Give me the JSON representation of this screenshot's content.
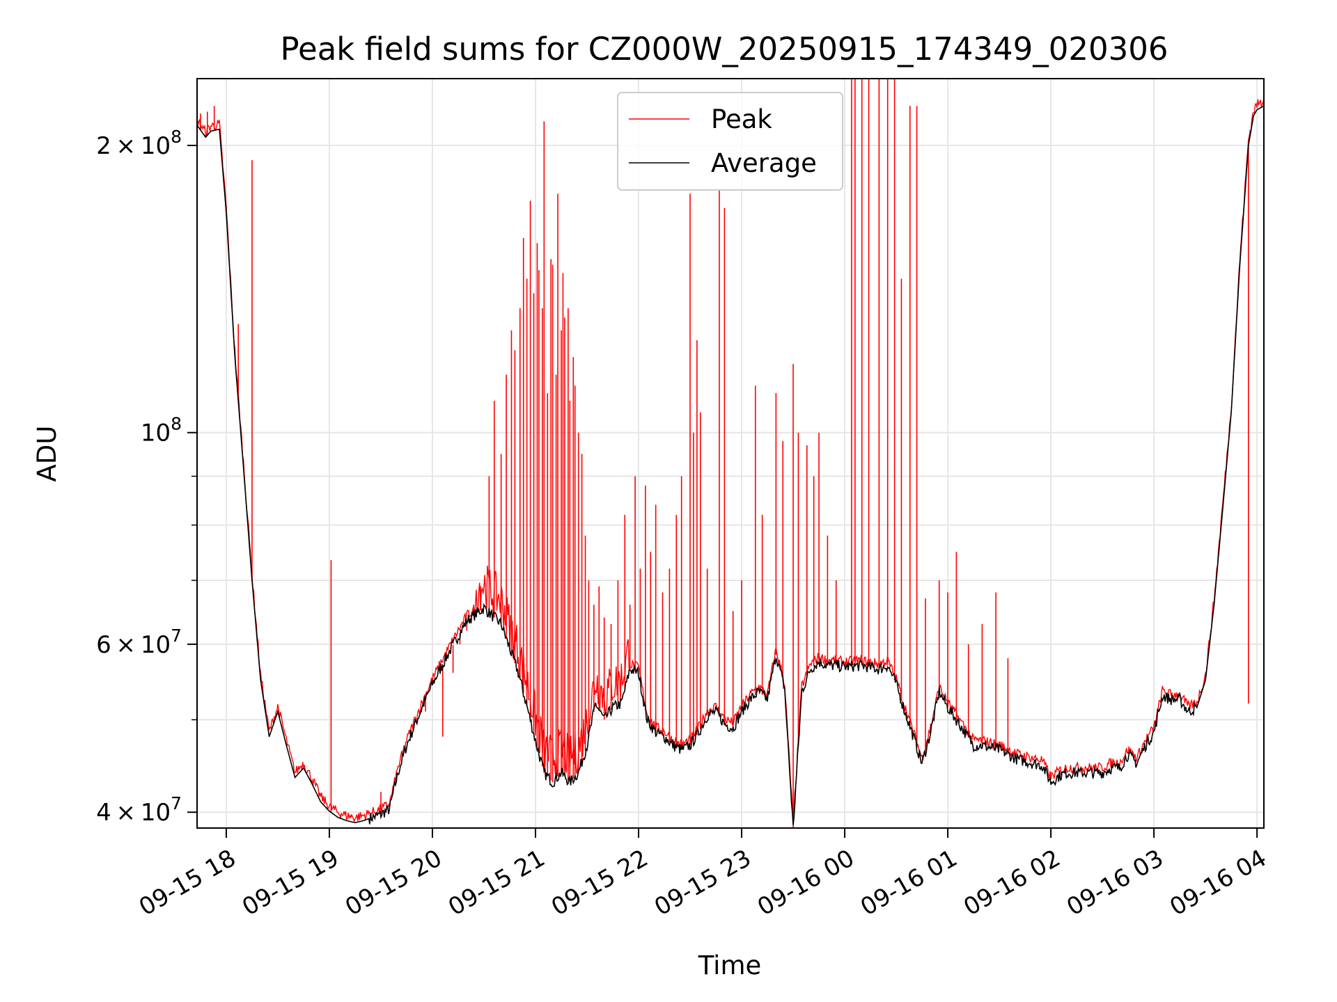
{
  "chart_data": {
    "type": "line",
    "title": "Peak field sums for CZ000W_20250915_174349_020306",
    "xlabel": "Time",
    "ylabel": "ADU",
    "yscale": "log",
    "ylim": [
      38500000,
      235000000
    ],
    "x_range": [
      "09-15 17:43",
      "09-16 04:04"
    ],
    "grid": true,
    "legend_position": "upper center",
    "colors": {
      "peak": "#ff0000",
      "average": "#000000"
    },
    "x_ticks": [
      "09-15 18",
      "09-15 19",
      "09-15 20",
      "09-15 21",
      "09-15 22",
      "09-15 23",
      "09-16 00",
      "09-16 01",
      "09-16 02",
      "09-16 03",
      "09-16 04"
    ],
    "y_ticks": [
      {
        "value": 40000000,
        "mantissa": "4",
        "exponent": "7"
      },
      {
        "value": 60000000,
        "mantissa": "6",
        "exponent": "7"
      },
      {
        "value": 100000000,
        "mantissa": "",
        "exponent": "8"
      },
      {
        "value": 200000000,
        "mantissa": "2",
        "exponent": "8"
      }
    ],
    "y_minor_ticks": [
      50000000,
      70000000,
      80000000,
      90000000
    ],
    "series": [
      {
        "name": "Average",
        "x": [
          "09-15 17:43",
          "09-15 17:48",
          "09-15 17:51",
          "09-15 17:56",
          "09-15 18:00",
          "09-15 18:05",
          "09-15 18:10",
          "09-15 18:15",
          "09-15 18:20",
          "09-15 18:25",
          "09-15 18:30",
          "09-15 18:35",
          "09-15 18:40",
          "09-15 18:45",
          "09-15 18:50",
          "09-15 18:55",
          "09-15 19:00",
          "09-15 19:05",
          "09-15 19:10",
          "09-15 19:15",
          "09-15 19:20",
          "09-15 19:25",
          "09-15 19:30",
          "09-15 19:35",
          "09-15 19:40",
          "09-15 19:45",
          "09-15 19:50",
          "09-15 19:55",
          "09-15 20:00",
          "09-15 20:10",
          "09-15 20:20",
          "09-15 20:30",
          "09-15 20:40",
          "09-15 20:50",
          "09-15 20:57",
          "09-15 21:00",
          "09-15 21:05",
          "09-15 21:10",
          "09-15 21:15",
          "09-15 21:20",
          "09-15 21:25",
          "09-15 21:30",
          "09-15 21:35",
          "09-15 21:40",
          "09-15 21:45",
          "09-15 21:50",
          "09-15 21:55",
          "09-15 22:00",
          "09-15 22:05",
          "09-15 22:10",
          "09-15 22:15",
          "09-15 22:20",
          "09-15 22:25",
          "09-15 22:30",
          "09-15 22:35",
          "09-15 22:40",
          "09-15 22:45",
          "09-15 22:50",
          "09-15 22:55",
          "09-15 23:00",
          "09-15 23:05",
          "09-15 23:10",
          "09-15 23:15",
          "09-15 23:20",
          "09-15 23:25",
          "09-15 23:30",
          "09-15 23:35",
          "09-15 23:40",
          "09-15 23:45",
          "09-15 23:50",
          "09-15 23:55",
          "09-16 00:00",
          "09-16 00:10",
          "09-16 00:20",
          "09-16 00:25",
          "09-16 00:30",
          "09-16 00:35",
          "09-16 00:40",
          "09-16 00:45",
          "09-16 00:50",
          "09-16 00:55",
          "09-16 01:00",
          "09-16 01:05",
          "09-16 01:10",
          "09-16 01:15",
          "09-16 01:20",
          "09-16 01:30",
          "09-16 01:40",
          "09-16 01:50",
          "09-16 01:55",
          "09-16 02:00",
          "09-16 02:05",
          "09-16 02:10",
          "09-16 02:20",
          "09-16 02:30",
          "09-16 02:35",
          "09-16 02:40",
          "09-16 02:45",
          "09-16 02:50",
          "09-16 02:55",
          "09-16 03:00",
          "09-16 03:05",
          "09-16 03:10",
          "09-16 03:15",
          "09-16 03:20",
          "09-16 03:25",
          "09-16 03:30",
          "09-16 03:35",
          "09-16 03:40",
          "09-16 03:45",
          "09-16 03:50",
          "09-16 03:55",
          "09-16 03:58",
          "09-16 04:00",
          "09-16 04:04"
        ],
        "values": [
          210000000,
          204000000,
          207000000,
          208000000,
          170000000,
          120000000,
          92000000,
          70000000,
          55000000,
          48000000,
          51000000,
          47000000,
          43500000,
          44500000,
          42800000,
          41000000,
          40100000,
          39500000,
          39200000,
          39000000,
          39200000,
          39500000,
          39800000,
          40300000,
          44000000,
          47000000,
          49500000,
          52000000,
          54500000,
          59000000,
          63500000,
          65500000,
          63000000,
          56000000,
          50000000,
          47500000,
          44000000,
          43000000,
          44000000,
          43000000,
          44000000,
          47000000,
          52000000,
          50000000,
          51500000,
          52000000,
          56500000,
          56000000,
          50000000,
          48500000,
          48000000,
          47000000,
          46500000,
          47000000,
          48500000,
          50500000,
          51000000,
          49500000,
          49000000,
          51000000,
          52500000,
          53500000,
          52500000,
          58500000,
          54000000,
          38500000,
          53500000,
          56500000,
          57500000,
          57000000,
          57000000,
          56800000,
          57000000,
          56500000,
          57000000,
          54500000,
          51000000,
          48000000,
          45000000,
          48500000,
          53500000,
          51500000,
          50000000,
          48500000,
          47000000,
          47000000,
          46500000,
          45500000,
          45000000,
          44800000,
          43000000,
          43700000,
          44000000,
          44000000,
          44000000,
          44500000,
          44500000,
          46000000,
          45000000,
          47000000,
          48500000,
          53000000,
          52500000,
          52500000,
          51000000,
          51500000,
          55000000,
          66000000,
          83000000,
          105000000,
          150000000,
          200000000,
          215000000,
          218000000,
          220000000
        ]
      },
      {
        "name": "Peak",
        "baseline": "Average",
        "spikes": [
          {
            "x": "09-15 17:45",
            "y": 216000000
          },
          {
            "x": "09-15 17:49",
            "y": 217000000
          },
          {
            "x": "09-15 17:53",
            "y": 220000000
          },
          {
            "x": "09-15 18:00",
            "y": 173000000
          },
          {
            "x": "09-15 18:07",
            "y": 130000000
          },
          {
            "x": "09-15 18:15",
            "y": 193000000
          },
          {
            "x": "09-15 19:01",
            "y": 73500000
          },
          {
            "x": "09-15 19:30",
            "y": 42000000
          },
          {
            "x": "09-15 19:56",
            "y": 51000000
          },
          {
            "x": "09-15 20:06",
            "y": 48000000
          },
          {
            "x": "09-15 20:12",
            "y": 56000000
          },
          {
            "x": "09-15 20:16",
            "y": 60000000
          },
          {
            "x": "09-15 20:20",
            "y": 62000000
          },
          {
            "x": "09-15 20:24",
            "y": 66000000
          },
          {
            "x": "09-15 20:28",
            "y": 69000000
          },
          {
            "x": "09-15 20:33",
            "y": 90000000
          },
          {
            "x": "09-15 20:36",
            "y": 108000000
          },
          {
            "x": "09-15 20:40",
            "y": 95000000
          },
          {
            "x": "09-15 20:43",
            "y": 115000000
          },
          {
            "x": "09-15 20:46",
            "y": 128000000
          },
          {
            "x": "09-15 20:48",
            "y": 122000000
          },
          {
            "x": "09-15 20:51",
            "y": 135000000
          },
          {
            "x": "09-15 20:53",
            "y": 160000000
          },
          {
            "x": "09-15 20:55",
            "y": 145000000
          },
          {
            "x": "09-15 20:57",
            "y": 175000000
          },
          {
            "x": "09-15 20:59",
            "y": 140000000
          },
          {
            "x": "09-15 21:01",
            "y": 158000000
          },
          {
            "x": "09-15 21:02",
            "y": 148000000
          },
          {
            "x": "09-15 21:04",
            "y": 135000000
          },
          {
            "x": "09-15 21:05",
            "y": 212000000
          },
          {
            "x": "09-15 21:07",
            "y": 110000000
          },
          {
            "x": "09-15 21:09",
            "y": 152000000
          },
          {
            "x": "09-15 21:10",
            "y": 150000000
          },
          {
            "x": "09-15 21:12",
            "y": 115000000
          },
          {
            "x": "09-15 21:13",
            "y": 178000000
          },
          {
            "x": "09-15 21:15",
            "y": 128000000
          },
          {
            "x": "09-15 21:16",
            "y": 147000000
          },
          {
            "x": "09-15 21:17",
            "y": 132000000
          },
          {
            "x": "09-15 21:19",
            "y": 135000000
          },
          {
            "x": "09-15 21:20",
            "y": 108000000
          },
          {
            "x": "09-15 21:22",
            "y": 120000000
          },
          {
            "x": "09-15 21:23",
            "y": 112000000
          },
          {
            "x": "09-15 21:25",
            "y": 100000000
          },
          {
            "x": "09-15 21:27",
            "y": 95000000
          },
          {
            "x": "09-15 21:29",
            "y": 78000000
          },
          {
            "x": "09-15 21:31",
            "y": 70000000
          },
          {
            "x": "09-15 21:34",
            "y": 66000000
          },
          {
            "x": "09-15 21:37",
            "y": 69000000
          },
          {
            "x": "09-15 21:40",
            "y": 64000000
          },
          {
            "x": "09-15 21:44",
            "y": 63000000
          },
          {
            "x": "09-15 21:48",
            "y": 70000000
          },
          {
            "x": "09-15 21:52",
            "y": 82000000
          },
          {
            "x": "09-15 21:55",
            "y": 66000000
          },
          {
            "x": "09-15 21:58",
            "y": 90000000
          },
          {
            "x": "09-15 22:01",
            "y": 72000000
          },
          {
            "x": "09-15 22:04",
            "y": 88000000
          },
          {
            "x": "09-15 22:07",
            "y": 75000000
          },
          {
            "x": "09-15 22:10",
            "y": 84000000
          },
          {
            "x": "09-15 22:14",
            "y": 68000000
          },
          {
            "x": "09-15 22:18",
            "y": 72000000
          },
          {
            "x": "09-15 22:22",
            "y": 82000000
          },
          {
            "x": "09-15 22:25",
            "y": 90000000
          },
          {
            "x": "09-15 22:30",
            "y": 178000000
          },
          {
            "x": "09-15 22:32",
            "y": 100000000
          },
          {
            "x": "09-15 22:34",
            "y": 125000000
          },
          {
            "x": "09-15 22:36",
            "y": 105000000
          },
          {
            "x": "09-15 22:40",
            "y": 72000000
          },
          {
            "x": "09-15 22:47",
            "y": 180000000
          },
          {
            "x": "09-15 22:50",
            "y": 172000000
          },
          {
            "x": "09-15 22:55",
            "y": 65000000
          },
          {
            "x": "09-15 23:00",
            "y": 70000000
          },
          {
            "x": "09-15 23:08",
            "y": 112000000
          },
          {
            "x": "09-15 23:12",
            "y": 82000000
          },
          {
            "x": "09-15 23:20",
            "y": 110000000
          },
          {
            "x": "09-15 23:24",
            "y": 98000000
          },
          {
            "x": "09-15 23:30",
            "y": 118000000
          },
          {
            "x": "09-15 23:33",
            "y": 100000000
          },
          {
            "x": "09-15 23:38",
            "y": 97000000
          },
          {
            "x": "09-15 23:42",
            "y": 90000000
          },
          {
            "x": "09-15 23:45",
            "y": 100000000
          },
          {
            "x": "09-15 23:50",
            "y": 78000000
          },
          {
            "x": "09-15 23:55",
            "y": 70000000
          },
          {
            "x": "09-16 00:04",
            "y": 235000000
          },
          {
            "x": "09-16 00:06",
            "y": 235000000
          },
          {
            "x": "09-16 00:10",
            "y": 235000000
          },
          {
            "x": "09-16 00:14",
            "y": 235000000
          },
          {
            "x": "09-16 00:20",
            "y": 235000000
          },
          {
            "x": "09-16 00:25",
            "y": 235000000
          },
          {
            "x": "09-16 00:29",
            "y": 235000000
          },
          {
            "x": "09-16 00:33",
            "y": 145000000
          },
          {
            "x": "09-16 00:38",
            "y": 220000000
          },
          {
            "x": "09-16 00:42",
            "y": 220000000
          },
          {
            "x": "09-16 00:47",
            "y": 67000000
          },
          {
            "x": "09-16 00:55",
            "y": 70000000
          },
          {
            "x": "09-16 01:00",
            "y": 68000000
          },
          {
            "x": "09-16 01:05",
            "y": 75000000
          },
          {
            "x": "09-16 01:12",
            "y": 60000000
          },
          {
            "x": "09-16 01:20",
            "y": 63000000
          },
          {
            "x": "09-16 01:28",
            "y": 68000000
          },
          {
            "x": "09-16 01:35",
            "y": 58000000
          },
          {
            "x": "09-16 03:55",
            "y": 52000000
          }
        ]
      }
    ]
  }
}
